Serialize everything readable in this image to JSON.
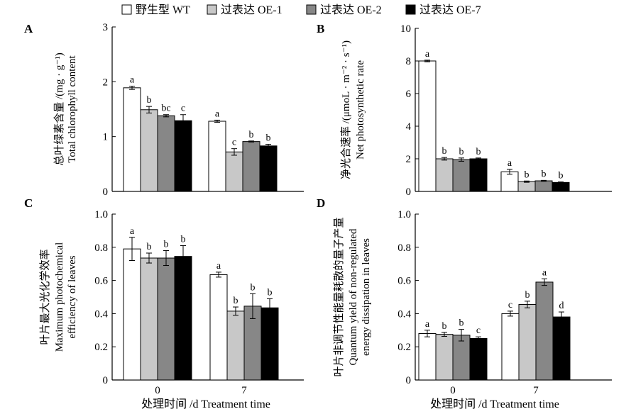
{
  "legend": [
    {
      "label": "野生型 WT",
      "color": "#ffffff"
    },
    {
      "label": "过表达 OE-1",
      "color": "#c8c8c8"
    },
    {
      "label": "过表达 OE-2",
      "color": "#878787"
    },
    {
      "label": "过表达 OE-7",
      "color": "#000000"
    }
  ],
  "x_axis_label": "处理时间 /d  Treatment time",
  "chart_data": [
    {
      "id": "A",
      "type": "bar",
      "letter": "A",
      "ylabel_lines": [
        "总叶绿素含量 /(mg · g⁻¹)",
        "Total chlorophyll content"
      ],
      "categories": [
        "0",
        "7"
      ],
      "ylim": [
        0,
        3
      ],
      "yticks": [
        0,
        1,
        2,
        3
      ],
      "show_x_ticklabels": false,
      "series": [
        {
          "name": "野生型 WT",
          "values": [
            1.89,
            1.28
          ],
          "errors": [
            0.03,
            0.02
          ],
          "sig": [
            "a",
            "a"
          ]
        },
        {
          "name": "过表达 OE-1",
          "values": [
            1.49,
            0.72
          ],
          "errors": [
            0.06,
            0.06
          ],
          "sig": [
            "b",
            "c"
          ]
        },
        {
          "name": "过表达 OE-2",
          "values": [
            1.38,
            0.91
          ],
          "errors": [
            0.02,
            0.01
          ],
          "sig": [
            "bc",
            "b"
          ]
        },
        {
          "name": "过表达 OE-7",
          "values": [
            1.29,
            0.83
          ],
          "errors": [
            0.11,
            0.03
          ],
          "sig": [
            "c",
            "b"
          ]
        }
      ]
    },
    {
      "id": "B",
      "type": "bar",
      "letter": "B",
      "ylabel_lines": [
        "净光合速率 /(μmoL · m⁻² · s⁻¹)",
        "Net photosynthetic rate"
      ],
      "categories": [
        "0",
        "7"
      ],
      "ylim": [
        0,
        10
      ],
      "yticks": [
        0,
        2,
        4,
        6,
        8,
        10
      ],
      "show_x_ticklabels": false,
      "series": [
        {
          "name": "野生型 WT",
          "values": [
            8.0,
            1.2
          ],
          "errors": [
            0.05,
            0.15
          ],
          "sig": [
            "a",
            "a"
          ]
        },
        {
          "name": "过表达 OE-1",
          "values": [
            2.0,
            0.6
          ],
          "errors": [
            0.08,
            0.04
          ],
          "sig": [
            "b",
            "b"
          ]
        },
        {
          "name": "过表达 OE-2",
          "values": [
            1.95,
            0.65
          ],
          "errors": [
            0.1,
            0.03
          ],
          "sig": [
            "b",
            "b"
          ]
        },
        {
          "name": "过表达 OE-7",
          "values": [
            2.0,
            0.55
          ],
          "errors": [
            0.05,
            0.03
          ],
          "sig": [
            "b",
            "b"
          ]
        }
      ]
    },
    {
      "id": "C",
      "type": "bar",
      "letter": "C",
      "ylabel_lines": [
        "叶片最大光化学效率",
        "Maximum photochemical",
        "efficiency of leaves"
      ],
      "categories": [
        "0",
        "7"
      ],
      "ylim": [
        0,
        1
      ],
      "yticks": [
        "0",
        "0.2",
        "0.4",
        "0.6",
        "0.8",
        "1.0"
      ],
      "show_x_ticklabels": true,
      "series": [
        {
          "name": "野生型 WT",
          "values": [
            0.79,
            0.635
          ],
          "errors": [
            0.07,
            0.015
          ],
          "sig": [
            "a",
            "a"
          ]
        },
        {
          "name": "过表达 OE-1",
          "values": [
            0.735,
            0.415
          ],
          "errors": [
            0.03,
            0.025
          ],
          "sig": [
            "b",
            "b"
          ]
        },
        {
          "name": "过表达 OE-2",
          "values": [
            0.735,
            0.445
          ],
          "errors": [
            0.045,
            0.075
          ],
          "sig": [
            "b",
            "b"
          ]
        },
        {
          "name": "过表达 OE-7",
          "values": [
            0.745,
            0.435
          ],
          "errors": [
            0.065,
            0.055
          ],
          "sig": [
            "b",
            "b"
          ]
        }
      ]
    },
    {
      "id": "D",
      "type": "bar",
      "letter": "D",
      "ylabel_lines": [
        "叶片非调节性能量耗散的量子产量",
        "Quantum yield of non-regulated",
        "energy dissipation in leaves"
      ],
      "categories": [
        "0",
        "7"
      ],
      "ylim": [
        0,
        1
      ],
      "yticks": [
        "0",
        "0.2",
        "0.4",
        "0.6",
        "0.8",
        "1.0"
      ],
      "show_x_ticklabels": true,
      "series": [
        {
          "name": "野生型 WT",
          "values": [
            0.28,
            0.4
          ],
          "errors": [
            0.02,
            0.015
          ],
          "sig": [
            "a",
            "c"
          ]
        },
        {
          "name": "过表达 OE-1",
          "values": [
            0.275,
            0.455
          ],
          "errors": [
            0.012,
            0.02
          ],
          "sig": [
            "b",
            "b"
          ]
        },
        {
          "name": "过表达 OE-2",
          "values": [
            0.27,
            0.59
          ],
          "errors": [
            0.035,
            0.02
          ],
          "sig": [
            "b",
            "a"
          ]
        },
        {
          "name": "过表达 OE-7",
          "values": [
            0.25,
            0.38
          ],
          "errors": [
            0.01,
            0.03
          ],
          "sig": [
            "c",
            "d"
          ]
        }
      ]
    }
  ]
}
